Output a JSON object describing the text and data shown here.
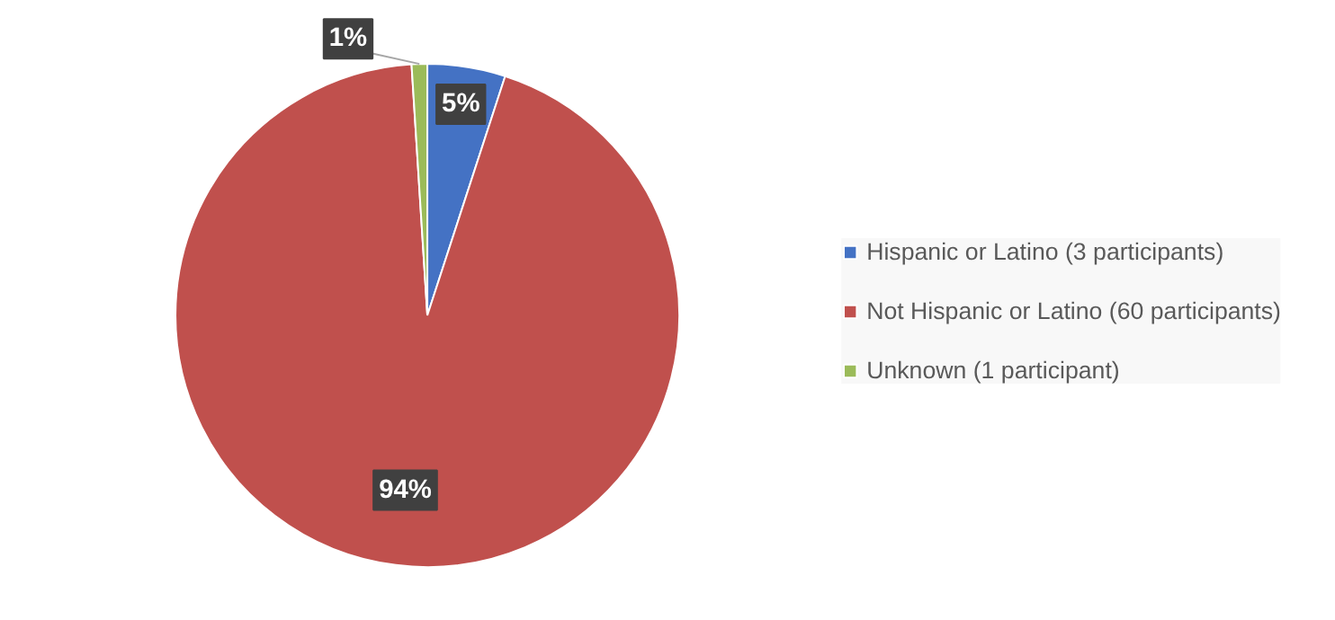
{
  "chart_data": {
    "type": "pie",
    "categories": [
      "Hispanic or Latino (3 participants)",
      "Not Hispanic or Latino (60 participants)",
      "Unknown (1 participant)"
    ],
    "values": [
      5,
      94,
      1
    ],
    "colors": [
      "#4472c4",
      "#c0504d",
      "#9bbb59"
    ],
    "value_labels": [
      "5%",
      "94%",
      "1%"
    ],
    "legend": "right"
  }
}
